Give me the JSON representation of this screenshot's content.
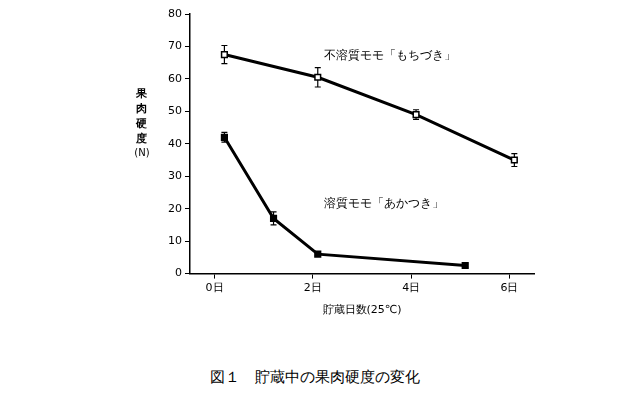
{
  "chart_data": {
    "type": "line",
    "title": "図１　貯蔵中の果肉硬度の変化",
    "x_label": "貯蔵日数(25℃)",
    "y_label": "果肉硬度(N)",
    "xlim": [
      -0.5,
      6.5
    ],
    "xticks": [
      {
        "value": 0,
        "label": "0日"
      },
      {
        "value": 2,
        "label": "2日"
      },
      {
        "value": 4,
        "label": "4日"
      },
      {
        "value": 6,
        "label": "6日"
      }
    ],
    "ylim": [
      0,
      80
    ],
    "yticks": [
      0,
      10,
      20,
      30,
      40,
      50,
      60,
      70,
      80
    ],
    "grid": false,
    "series": [
      {
        "name": "不溶質モモ「もちづき」",
        "color": "#000000",
        "marker": "square_open",
        "x": [
          0.2,
          2.1,
          4.1,
          6.1
        ],
        "values": [
          67.5,
          60.5,
          49,
          35
        ],
        "errors": [
          2.8,
          3,
          1.5,
          2
        ]
      },
      {
        "name": "溶質モモ「あかつき」",
        "color": "#000000",
        "marker": "square",
        "x": [
          0.2,
          1.2,
          2.1,
          5.1
        ],
        "values": [
          42,
          17,
          6,
          2.5
        ],
        "errors": [
          1.5,
          2,
          0.5,
          0.5
        ]
      }
    ]
  }
}
